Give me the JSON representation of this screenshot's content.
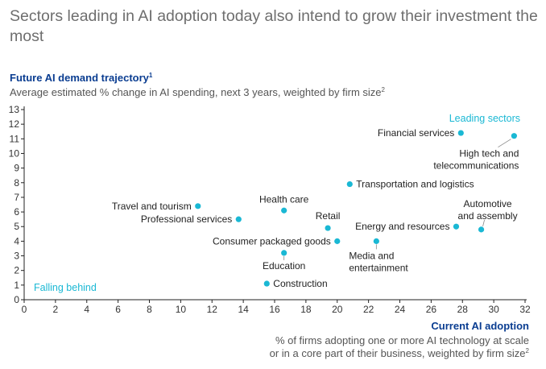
{
  "headline": "Sectors leading in AI adoption today also intend to grow their investment the most",
  "y_title": "Future AI demand trajectory",
  "y_title_sup": "1",
  "y_subtitle": "Average estimated % change in AI spending, next 3 years, weighted by firm size",
  "y_subtitle_sup": "2",
  "x_title": "Current AI adoption",
  "x_subtitle_line1": "% of firms adopting one or more AI technology at scale",
  "x_subtitle_line2": "or in a core part of their business, weighted by firm size",
  "x_subtitle_sup": "2",
  "colors": {
    "point": "#1ab8d4",
    "accent_title": "#0a3d91",
    "text": "#222222"
  },
  "chart_data": {
    "type": "scatter",
    "title": "Sectors leading in AI adoption today also intend to grow their investment the most",
    "xlabel": "Current AI adoption",
    "ylabel": "Future AI demand trajectory",
    "xlim": [
      0,
      32
    ],
    "ylim": [
      0,
      13
    ],
    "x_ticks": [
      0,
      2,
      4,
      6,
      8,
      10,
      12,
      14,
      16,
      18,
      20,
      22,
      24,
      26,
      28,
      30,
      32
    ],
    "y_ticks": [
      0,
      1,
      2,
      3,
      4,
      5,
      6,
      7,
      8,
      9,
      10,
      11,
      12,
      13
    ],
    "grid": false,
    "annotations": [
      "Leading sectors",
      "Falling behind"
    ],
    "points": [
      {
        "label": "Financial services",
        "x": 27.9,
        "y": 11.4
      },
      {
        "label": "High tech and telecommunications",
        "x": 31.3,
        "y": 11.2
      },
      {
        "label": "Transportation and logistics",
        "x": 20.8,
        "y": 7.9
      },
      {
        "label": "Travel and tourism",
        "x": 11.1,
        "y": 6.4
      },
      {
        "label": "Health care",
        "x": 16.6,
        "y": 6.1
      },
      {
        "label": "Professional services",
        "x": 13.7,
        "y": 5.5
      },
      {
        "label": "Retail",
        "x": 19.4,
        "y": 4.9
      },
      {
        "label": "Automotive and assembly",
        "x": 29.2,
        "y": 4.8
      },
      {
        "label": "Energy and resources",
        "x": 27.6,
        "y": 5.0
      },
      {
        "label": "Consumer packaged goods",
        "x": 20.0,
        "y": 4.0
      },
      {
        "label": "Media and entertainment",
        "x": 22.5,
        "y": 4.0
      },
      {
        "label": "Education",
        "x": 16.6,
        "y": 3.2
      },
      {
        "label": "Construction",
        "x": 15.5,
        "y": 1.1
      }
    ]
  }
}
